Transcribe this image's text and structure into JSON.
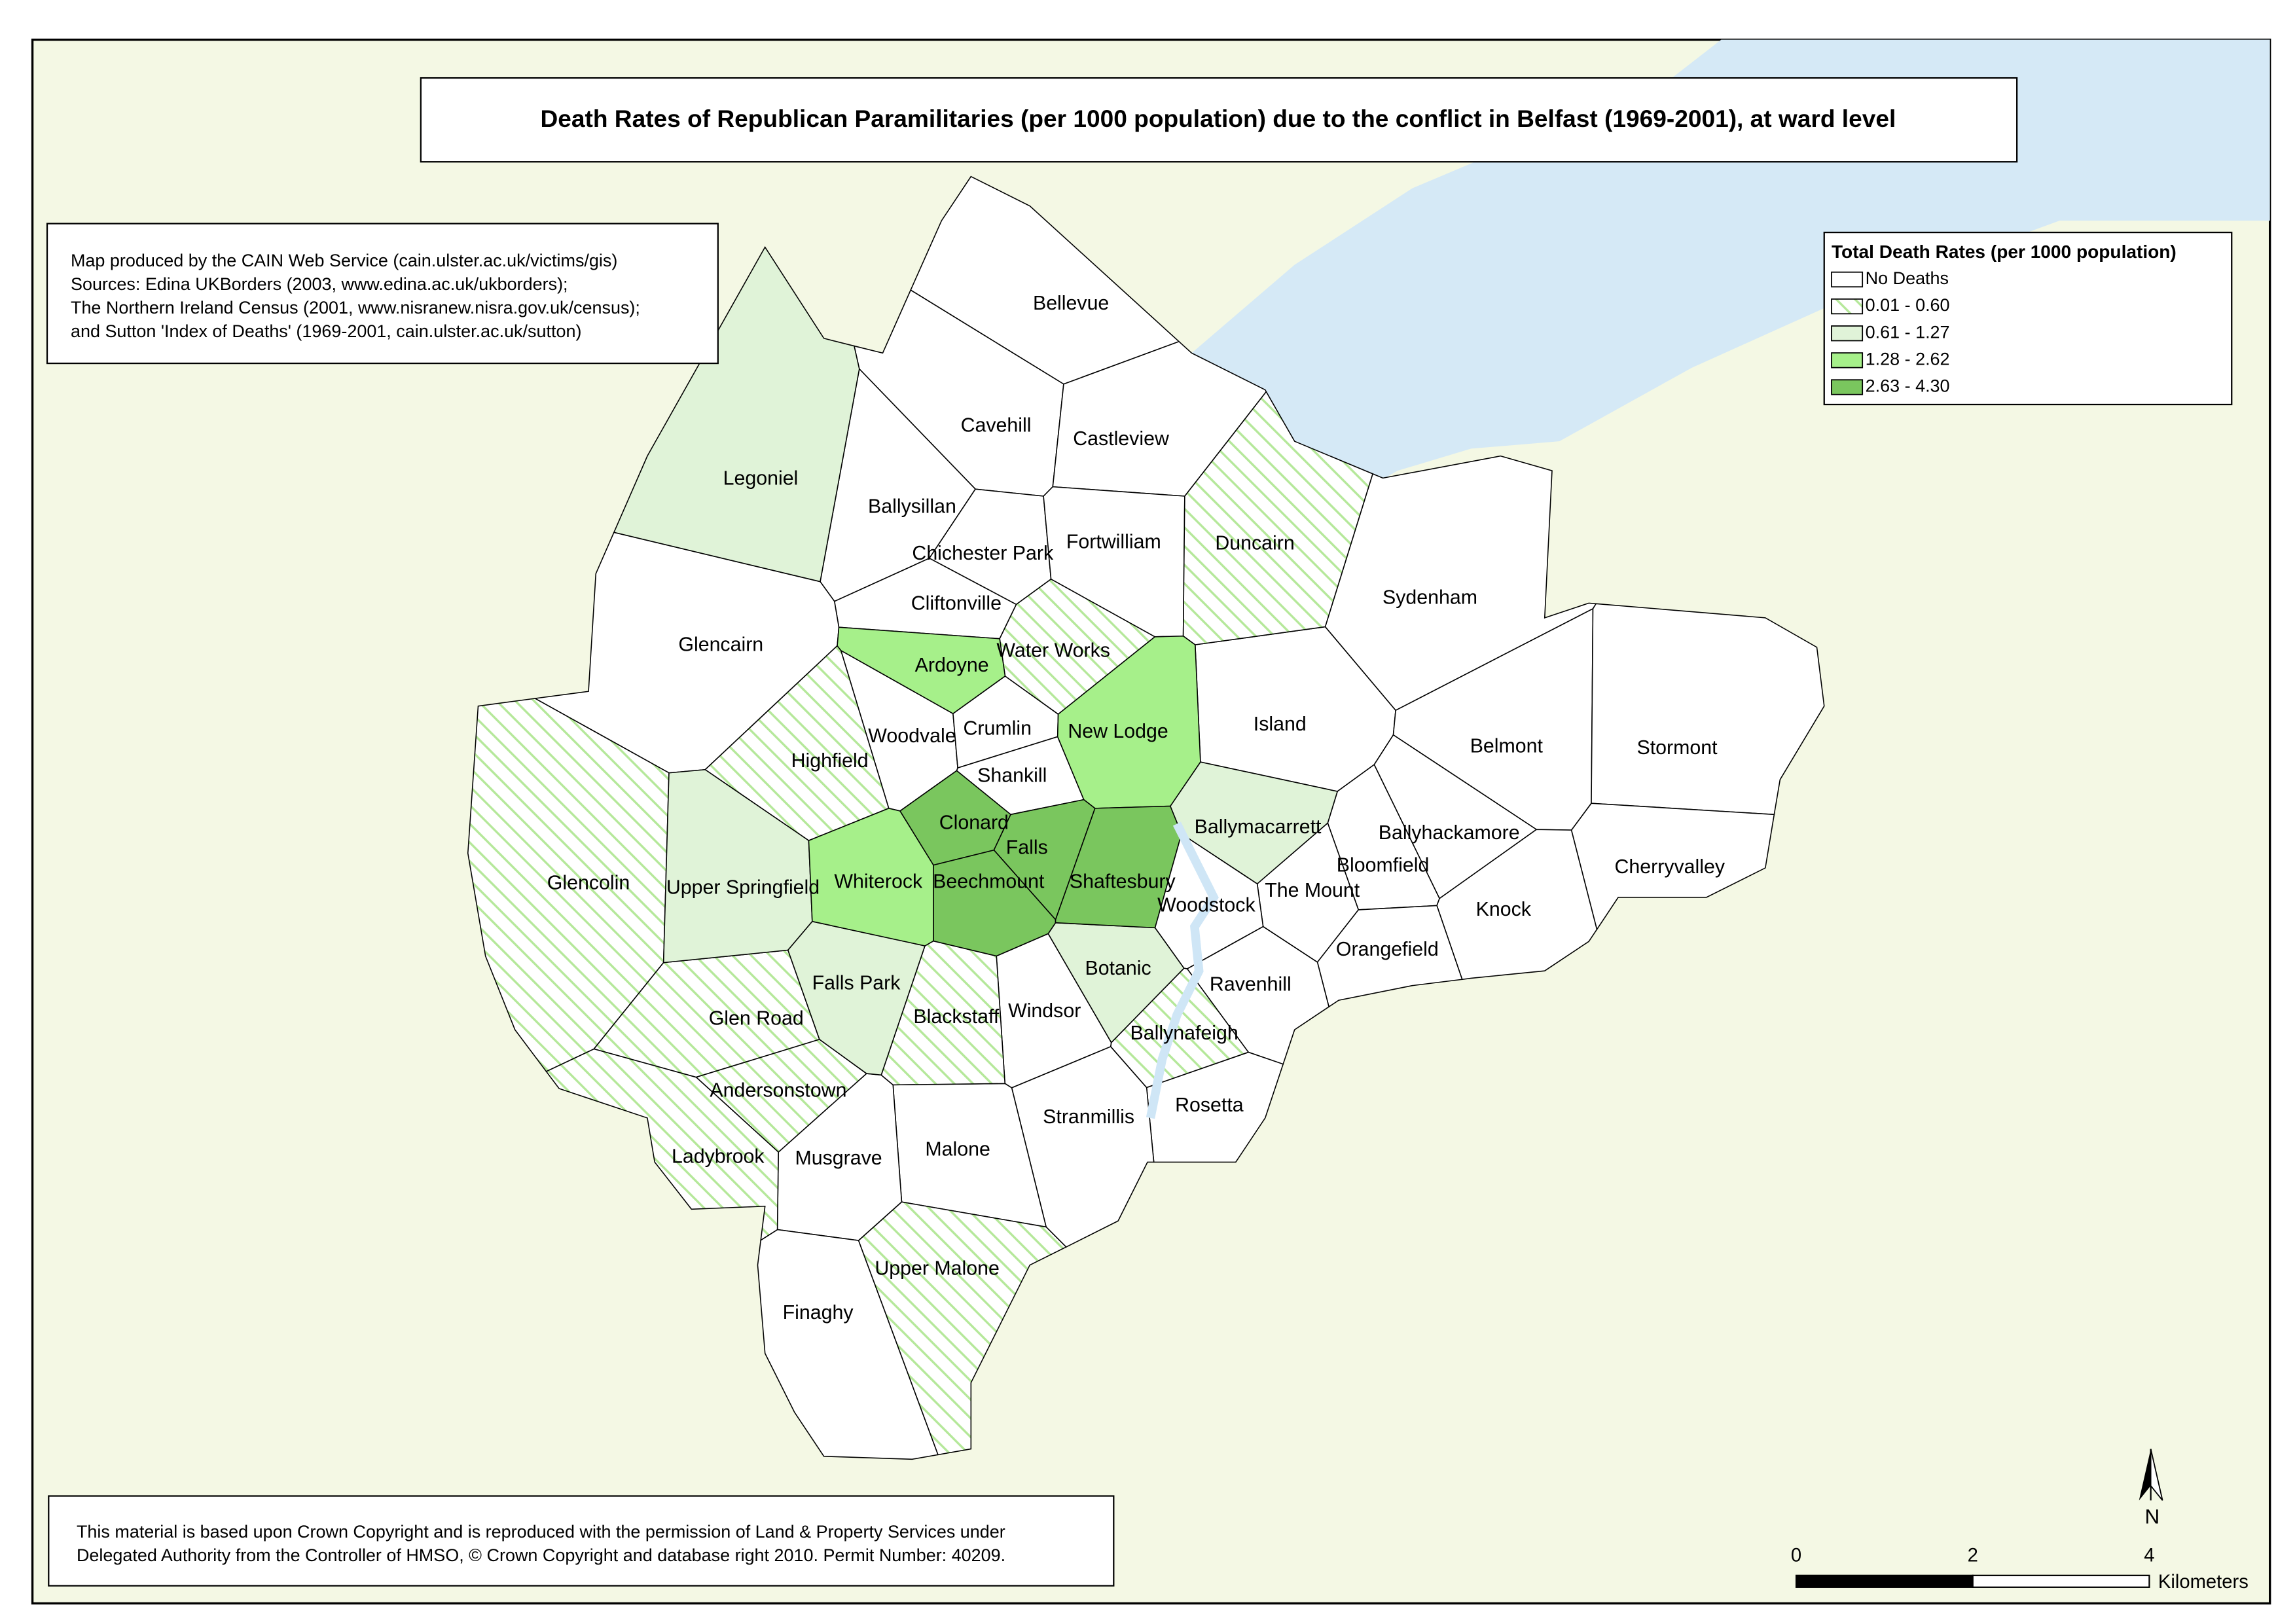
{
  "title": "Death Rates of Republican Paramilitaries (per 1000 population) due to the conflict in Belfast (1969-2001),  at ward level",
  "credits": [
    "Map produced by the CAIN Web Service (cain.ulster.ac.uk/victims/gis)",
    "Sources: Edina UKBorders (2003, www.edina.ac.uk/ukborders);",
    "The Northern Ireland Census (2001, www.nisranew.nisra.gov.uk/census);",
    "and Sutton 'Index of Deaths' (1969-2001, cain.ulster.ac.uk/sutton)"
  ],
  "legend": {
    "title": "Total Death Rates (per 1000 population)",
    "classes": [
      {
        "label": "No Deaths",
        "color": "#ffffff",
        "wards": [
          "Bellevue",
          "Cavehill",
          "Castleview",
          "Ballysillan",
          "Chichester Park",
          "Fortwilliam",
          "Cliftonville",
          "Glencairn",
          "Woodvale",
          "Crumlin",
          "Shankill",
          "Sydenham",
          "Island",
          "Belmont",
          "Stormont",
          "Ballyhackamore",
          "Bloomfield",
          "The Mount",
          "Woodstock",
          "Knock",
          "Cherryvalley",
          "Orangefield",
          "Ravenhill",
          "Windsor",
          "Rosetta",
          "Stranmillis",
          "Malone",
          "Musgrave",
          "Finaghy"
        ]
      },
      {
        "label": "0.01 - 0.60",
        "color": "#b5e89a",
        "hatched": true,
        "wards": [
          "Duncairn",
          "Water Works",
          "Highfield",
          "Glencolin",
          "Blackstaff",
          "Glen Road",
          "Andersonstown",
          "Ladybrook",
          "Upper Malone",
          "Ballynafeigh"
        ]
      },
      {
        "label": "0.61 - 1.27",
        "color": "#e0f3d8",
        "wards": [
          "Legoniel",
          "Upper Springfield",
          "Falls Park",
          "Botanic",
          "Ballymacarrett"
        ]
      },
      {
        "label": "1.28 - 2.62",
        "color": "#a6f08a",
        "wards": [
          "Ardoyne",
          "New Lodge",
          "Whiterock"
        ]
      },
      {
        "label": "2.63 - 4.30",
        "color": "#7ac65e",
        "wards": [
          "Clonard",
          "Falls",
          "Beechmount",
          "Shaftesbury"
        ]
      }
    ]
  },
  "copyright": [
    "This material is based upon Crown Copyright and is reproduced with the permission of Land & Property Services under",
    "Delegated Authority from the Controller of HMSO, © Crown Copyright and database right 2010. Permit Number: 40209."
  ],
  "scale_bar": {
    "ticks": [
      0,
      2,
      4
    ],
    "unit": "Kilometers"
  },
  "north": "N"
}
